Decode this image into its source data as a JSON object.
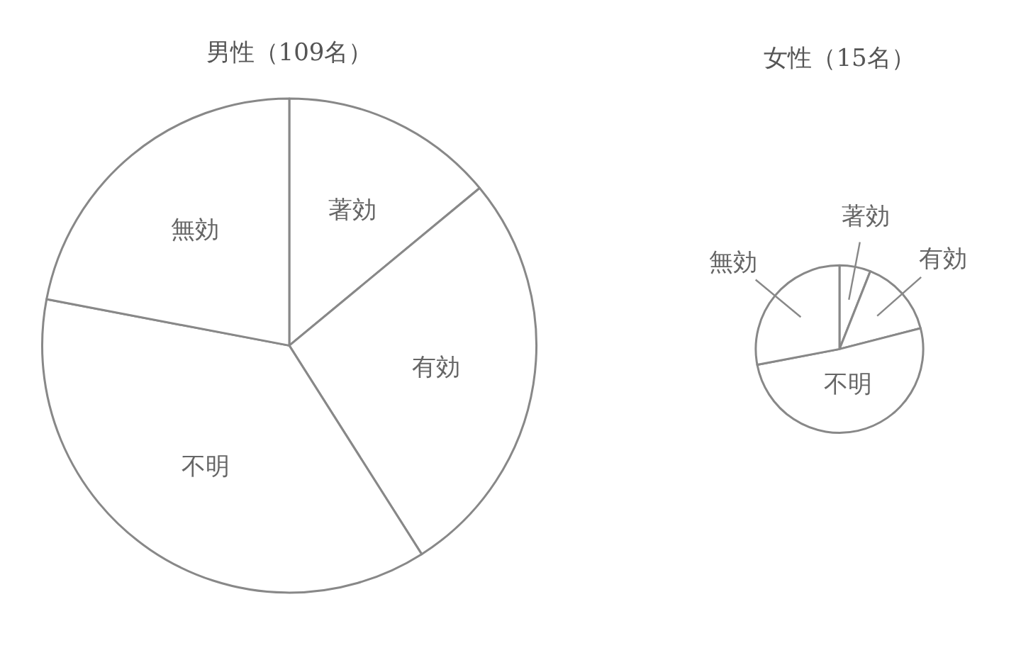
{
  "chart_data": [
    {
      "type": "pie",
      "title": "男性（109名）",
      "categories": [
        "著効",
        "有効",
        "不明",
        "無効"
      ],
      "values": [
        14,
        27,
        37,
        22
      ],
      "colors": [
        "#ffffff",
        "#ffffff",
        "#ffffff",
        "#ffffff"
      ]
    },
    {
      "type": "pie",
      "title": "女性（15名）",
      "categories": [
        "著効",
        "有効",
        "不明",
        "無効"
      ],
      "values": [
        6,
        15,
        51,
        28
      ],
      "colors": [
        "#ffffff",
        "#ffffff",
        "#ffffff",
        "#ffffff"
      ]
    }
  ]
}
